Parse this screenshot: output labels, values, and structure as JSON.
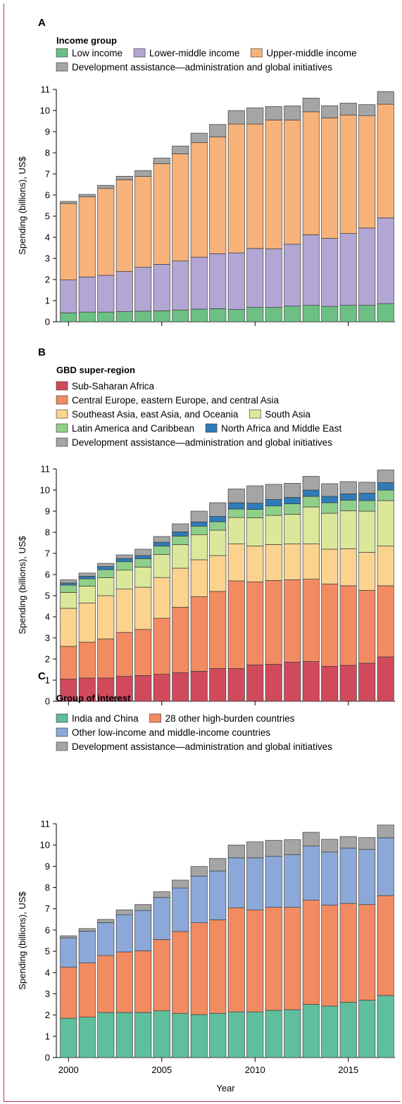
{
  "years": [
    "2000",
    "2001",
    "2002",
    "2003",
    "2004",
    "2005",
    "2006",
    "2007",
    "2008",
    "2009",
    "2010",
    "2011",
    "2012",
    "2013",
    "2014",
    "2015",
    "2016",
    "2017"
  ],
  "shared": {
    "ylabel": "Spending (billions), US$",
    "xlabel": "Year",
    "xticks": [
      "2000",
      "2005",
      "2010",
      "2015"
    ],
    "yticks": [
      "0",
      "1",
      "2",
      "3",
      "4",
      "5",
      "6",
      "7",
      "8",
      "9",
      "10",
      "11"
    ]
  },
  "chart_data": [
    {
      "type": "bar",
      "stacked": true,
      "panel": "A",
      "legend_title": "Income group",
      "categories": [
        "2000",
        "2001",
        "2002",
        "2003",
        "2004",
        "2005",
        "2006",
        "2007",
        "2008",
        "2009",
        "2010",
        "2011",
        "2012",
        "2013",
        "2014",
        "2015",
        "2016",
        "2017"
      ],
      "ylabel": "Spending (billions), US$",
      "ylim": [
        0,
        11
      ],
      "series": [
        {
          "name": "Low income",
          "color": "#6cc083",
          "values": [
            0.42,
            0.46,
            0.46,
            0.48,
            0.5,
            0.52,
            0.56,
            0.6,
            0.62,
            0.58,
            0.68,
            0.68,
            0.74,
            0.78,
            0.73,
            0.78,
            0.78,
            0.86
          ]
        },
        {
          "name": "Lower-middle income",
          "color": "#b3a6d4",
          "values": [
            1.56,
            1.66,
            1.74,
            1.9,
            2.08,
            2.2,
            2.32,
            2.46,
            2.6,
            2.68,
            2.79,
            2.77,
            2.93,
            3.34,
            3.22,
            3.4,
            3.66,
            4.06
          ]
        },
        {
          "name": "Upper-middle income",
          "color": "#f7b27a",
          "values": [
            3.62,
            3.79,
            4.11,
            4.34,
            4.3,
            4.76,
            5.07,
            5.42,
            5.53,
            6.1,
            5.89,
            6.1,
            5.88,
            5.82,
            5.7,
            5.61,
            5.32,
            5.38
          ]
        },
        {
          "name": "Development assistance—administration and global initiatives",
          "color": "#a5a5a5",
          "values": [
            0.1,
            0.12,
            0.15,
            0.17,
            0.28,
            0.27,
            0.37,
            0.45,
            0.59,
            0.64,
            0.77,
            0.64,
            0.67,
            0.65,
            0.58,
            0.56,
            0.52,
            0.6
          ]
        }
      ]
    },
    {
      "type": "bar",
      "stacked": true,
      "panel": "B",
      "legend_title": "GBD super-region",
      "categories": [
        "2000",
        "2001",
        "2002",
        "2003",
        "2004",
        "2005",
        "2006",
        "2007",
        "2008",
        "2009",
        "2010",
        "2011",
        "2012",
        "2013",
        "2014",
        "2015",
        "2016",
        "2017"
      ],
      "ylabel": "Spending (billions), US$",
      "ylim": [
        0,
        11
      ],
      "series": [
        {
          "name": "Sub-Saharan Africa",
          "color": "#d04a5c",
          "values": [
            1.05,
            1.1,
            1.1,
            1.18,
            1.22,
            1.28,
            1.35,
            1.42,
            1.55,
            1.55,
            1.72,
            1.75,
            1.85,
            1.88,
            1.65,
            1.7,
            1.8,
            2.1
          ]
        },
        {
          "name": "Central Europe, eastern Europe, and central Asia",
          "color": "#f28b62",
          "values": [
            1.55,
            1.7,
            1.85,
            2.08,
            2.18,
            2.65,
            3.1,
            3.53,
            3.65,
            4.15,
            3.93,
            3.97,
            3.9,
            3.9,
            3.9,
            3.77,
            3.45,
            3.37
          ]
        },
        {
          "name": "Southeast Asia, east Asia, and Oceania",
          "color": "#fbd38e",
          "values": [
            1.8,
            1.85,
            2.05,
            2.05,
            2.0,
            1.93,
            1.85,
            1.75,
            1.7,
            1.75,
            1.7,
            1.7,
            1.7,
            1.67,
            1.65,
            1.75,
            1.8,
            1.88
          ]
        },
        {
          "name": "South Asia",
          "color": "#dbe89a",
          "values": [
            0.75,
            0.8,
            0.85,
            0.9,
            0.95,
            1.09,
            1.12,
            1.19,
            1.2,
            1.25,
            1.33,
            1.38,
            1.4,
            1.75,
            1.7,
            1.8,
            1.95,
            2.15
          ]
        },
        {
          "name": "Latin America and Caribbean",
          "color": "#8fcf8a",
          "values": [
            0.35,
            0.35,
            0.38,
            0.4,
            0.4,
            0.4,
            0.4,
            0.4,
            0.4,
            0.4,
            0.4,
            0.45,
            0.5,
            0.5,
            0.5,
            0.5,
            0.5,
            0.5
          ]
        },
        {
          "name": "North Africa and Middle East",
          "color": "#2f7cb8",
          "values": [
            0.1,
            0.12,
            0.15,
            0.15,
            0.15,
            0.18,
            0.2,
            0.2,
            0.25,
            0.3,
            0.3,
            0.3,
            0.3,
            0.3,
            0.3,
            0.3,
            0.35,
            0.35
          ]
        },
        {
          "name": "Development assistance—administration and global initiatives",
          "color": "#a5a5a5",
          "values": [
            0.15,
            0.15,
            0.15,
            0.17,
            0.3,
            0.27,
            0.38,
            0.51,
            0.65,
            0.65,
            0.82,
            0.72,
            0.67,
            0.65,
            0.6,
            0.58,
            0.52,
            0.6
          ]
        }
      ]
    },
    {
      "type": "bar",
      "stacked": true,
      "panel": "C",
      "legend_title": "Group of interest",
      "categories": [
        "2000",
        "2001",
        "2002",
        "2003",
        "2004",
        "2005",
        "2006",
        "2007",
        "2008",
        "2009",
        "2010",
        "2011",
        "2012",
        "2013",
        "2014",
        "2015",
        "2016",
        "2017"
      ],
      "ylabel": "Spending (billions), US$",
      "xlabel": "Year",
      "ylim": [
        0,
        11
      ],
      "series": [
        {
          "name": "India and China",
          "color": "#5fbf9c",
          "values": [
            1.85,
            1.9,
            2.12,
            2.12,
            2.12,
            2.2,
            2.08,
            2.02,
            2.08,
            2.15,
            2.15,
            2.22,
            2.25,
            2.5,
            2.42,
            2.6,
            2.7,
            2.92
          ]
        },
        {
          "name": "28 other high-burden countries",
          "color": "#f28b62",
          "values": [
            2.4,
            2.55,
            2.68,
            2.85,
            2.9,
            3.35,
            3.85,
            4.32,
            4.4,
            4.9,
            4.8,
            4.85,
            4.82,
            4.9,
            4.75,
            4.65,
            4.5,
            4.7
          ]
        },
        {
          "name": "Other low-income and middle-income countries",
          "color": "#8ca8d8",
          "values": [
            1.38,
            1.5,
            1.55,
            1.75,
            1.9,
            1.98,
            2.05,
            2.2,
            2.3,
            2.35,
            2.45,
            2.4,
            2.48,
            2.55,
            2.5,
            2.6,
            2.6,
            2.72
          ]
        },
        {
          "name": "Development assistance—administration and global initiatives",
          "color": "#a5a5a5",
          "values": [
            0.1,
            0.12,
            0.15,
            0.23,
            0.28,
            0.27,
            0.37,
            0.45,
            0.59,
            0.6,
            0.75,
            0.75,
            0.7,
            0.65,
            0.6,
            0.55,
            0.55,
            0.6
          ]
        }
      ]
    }
  ]
}
